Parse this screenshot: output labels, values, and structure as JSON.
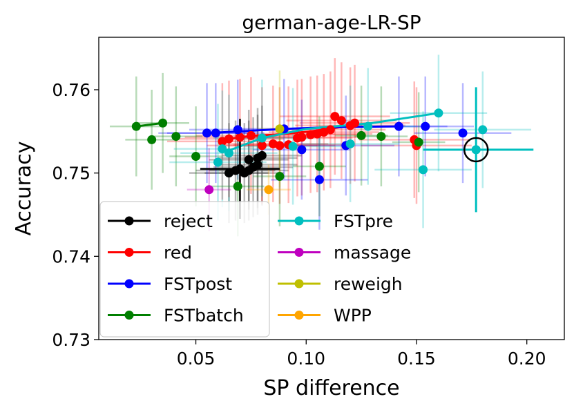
{
  "chart_data": {
    "type": "scatter",
    "title": "german-age-LR-SP",
    "xlabel": "SP difference",
    "ylabel": "Accuracy",
    "xlim": [
      0.006,
      0.217
    ],
    "ylim": [
      0.73,
      0.7663
    ],
    "xticks": [
      0.05,
      0.1,
      0.15,
      0.2
    ],
    "xtick_labels": [
      "0.05",
      "0.10",
      "0.15",
      "0.20"
    ],
    "yticks": [
      0.73,
      0.74,
      0.75,
      0.76
    ],
    "ytick_labels": [
      "0.73",
      "0.74",
      "0.75",
      "0.76"
    ],
    "legend_position": "lower-left",
    "legend_columns": 2,
    "highlight": {
      "label": "selected point",
      "x": 0.177,
      "y": 0.7528
    },
    "highlight_errorbar": {
      "x": 0.177,
      "y": 0.7528,
      "xerr_low": 0.024,
      "xerr_high": 0.026,
      "yerr": 0.0075,
      "color": "#00bfbf"
    },
    "series": [
      {
        "name": "reject",
        "color": "#000000",
        "line": [
          [
            0.065,
            0.75
          ],
          [
            0.068,
            0.7503
          ],
          [
            0.07,
            0.7505
          ],
          [
            0.072,
            0.75
          ],
          [
            0.074,
            0.7503
          ],
          [
            0.076,
            0.7507
          ],
          [
            0.078,
            0.751
          ]
        ],
        "points": [
          [
            0.065,
            0.75
          ],
          [
            0.068,
            0.7503
          ],
          [
            0.07,
            0.7505
          ],
          [
            0.072,
            0.75
          ],
          [
            0.074,
            0.7503
          ],
          [
            0.076,
            0.7507
          ],
          [
            0.078,
            0.751
          ],
          [
            0.074,
            0.7516
          ],
          [
            0.078,
            0.7518
          ],
          [
            0.08,
            0.7521
          ]
        ],
        "xerr": 0.018,
        "yerr": 0.006,
        "bold_errorbar": [
          0.07,
          0.7505
        ]
      },
      {
        "name": "red",
        "color": "#ff0000",
        "line": [
          [
            0.063,
            0.754
          ],
          [
            0.07,
            0.7543
          ],
          [
            0.078,
            0.7545
          ],
          [
            0.086,
            0.7546
          ],
          [
            0.094,
            0.7548
          ],
          [
            0.102,
            0.755
          ],
          [
            0.11,
            0.7553
          ],
          [
            0.118,
            0.7556
          ],
          [
            0.122,
            0.7558
          ]
        ],
        "points": [
          [
            0.062,
            0.7538
          ],
          [
            0.065,
            0.7541
          ],
          [
            0.07,
            0.7543
          ],
          [
            0.075,
            0.7545
          ],
          [
            0.08,
            0.7533
          ],
          [
            0.085,
            0.7535
          ],
          [
            0.088,
            0.7533
          ],
          [
            0.092,
            0.7534
          ],
          [
            0.096,
            0.7542
          ],
          [
            0.098,
            0.7543
          ],
          [
            0.102,
            0.7546
          ],
          [
            0.105,
            0.7547
          ],
          [
            0.108,
            0.7549
          ],
          [
            0.111,
            0.7552
          ],
          [
            0.113,
            0.7568
          ],
          [
            0.116,
            0.7563
          ],
          [
            0.12,
            0.7557
          ],
          [
            0.122,
            0.756
          ],
          [
            0.15,
            0.7533
          ],
          [
            0.149,
            0.754
          ]
        ],
        "xerr": 0.025,
        "yerr": 0.007
      },
      {
        "name": "FSTpost",
        "color": "#0000ff",
        "line": [
          [
            0.055,
            0.7548
          ],
          [
            0.07,
            0.755
          ],
          [
            0.09,
            0.7553
          ],
          [
            0.11,
            0.7555
          ],
          [
            0.142,
            0.7556
          ]
        ],
        "points": [
          [
            0.055,
            0.7548
          ],
          [
            0.059,
            0.7548
          ],
          [
            0.069,
            0.7552
          ],
          [
            0.09,
            0.7553
          ],
          [
            0.098,
            0.7528
          ],
          [
            0.106,
            0.7492
          ],
          [
            0.118,
            0.7533
          ],
          [
            0.142,
            0.7556
          ],
          [
            0.154,
            0.7556
          ],
          [
            0.171,
            0.7548
          ]
        ],
        "xerr": 0.022,
        "yerr": 0.006
      },
      {
        "name": "FSTbatch",
        "color": "#007f00",
        "line": [
          [
            0.023,
            0.7556
          ],
          [
            0.035,
            0.756
          ]
        ],
        "points": [
          [
            0.023,
            0.7556
          ],
          [
            0.03,
            0.754
          ],
          [
            0.035,
            0.756
          ],
          [
            0.041,
            0.7544
          ],
          [
            0.05,
            0.752
          ],
          [
            0.069,
            0.7484
          ],
          [
            0.088,
            0.7496
          ],
          [
            0.106,
            0.7508
          ],
          [
            0.125,
            0.7545
          ],
          [
            0.134,
            0.7544
          ],
          [
            0.151,
            0.7537
          ]
        ],
        "xerr": 0.012,
        "yerr": 0.006
      },
      {
        "name": "FSTpre",
        "color": "#00bfbf",
        "line": [
          [
            0.063,
            0.7525
          ],
          [
            0.08,
            0.7542
          ],
          [
            0.1,
            0.7553
          ],
          [
            0.13,
            0.756
          ],
          [
            0.16,
            0.7572
          ]
        ],
        "points": [
          [
            0.06,
            0.7513
          ],
          [
            0.062,
            0.7529
          ],
          [
            0.065,
            0.7524
          ],
          [
            0.08,
            0.7542
          ],
          [
            0.094,
            0.7532
          ],
          [
            0.12,
            0.7535
          ],
          [
            0.128,
            0.7556
          ],
          [
            0.153,
            0.7504
          ],
          [
            0.16,
            0.7572
          ],
          [
            0.177,
            0.7528
          ],
          [
            0.18,
            0.7552
          ]
        ],
        "xerr": 0.022,
        "yerr": 0.007
      },
      {
        "name": "massage",
        "color": "#bf00bf",
        "line": [],
        "points": [
          [
            0.056,
            0.748
          ]
        ],
        "xerr": 0.01,
        "yerr": 0.005
      },
      {
        "name": "reweigh",
        "color": "#bfbf00",
        "line": [],
        "points": [
          [
            0.088,
            0.7553
          ]
        ],
        "xerr": 0.01,
        "yerr": 0.007
      },
      {
        "name": "WPP",
        "color": "#ffa500",
        "line": [],
        "points": [
          [
            0.083,
            0.748
          ]
        ],
        "xerr": 0.01,
        "yerr": 0.003
      }
    ]
  }
}
